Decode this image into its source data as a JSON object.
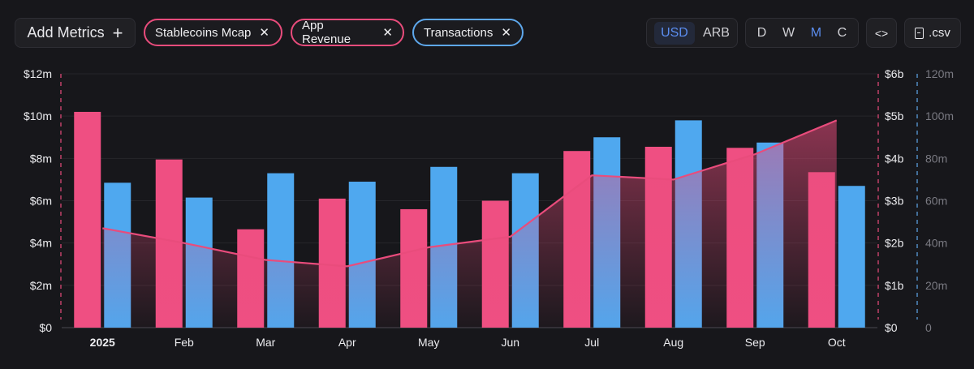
{
  "toolbar": {
    "add_metrics_label": "Add Metrics",
    "add_icon": "+",
    "metrics": [
      {
        "label": "Stablecoins Mcap",
        "color": "#e94c7c"
      },
      {
        "label": "App Revenue",
        "color": "#e94c7c"
      },
      {
        "label": "Transactions",
        "color": "#5ea8ec"
      }
    ],
    "close_icon": "✕",
    "currency": {
      "options": [
        "USD",
        "ARB"
      ],
      "selected": "USD"
    },
    "period": {
      "options": [
        "D",
        "W",
        "M",
        "C"
      ],
      "selected": "M"
    },
    "embed_label": "<>",
    "csv_label": ".csv"
  },
  "chart_data": {
    "type": "bar",
    "categories": [
      "2025",
      "Feb",
      "Mar",
      "Apr",
      "May",
      "Jun",
      "Jul",
      "Aug",
      "Sep",
      "Oct"
    ],
    "series": [
      {
        "name": "App Revenue",
        "type": "bar",
        "axis": "left",
        "color": "#ef4f82",
        "values": [
          10.2,
          7.95,
          4.65,
          6.1,
          5.6,
          6.0,
          8.35,
          8.55,
          8.5,
          7.35
        ]
      },
      {
        "name": "Transactions",
        "type": "bar",
        "axis": "right-2",
        "color": "#4fa8ef",
        "values": [
          68.5,
          61.5,
          73.0,
          69.0,
          76.0,
          73.0,
          90.0,
          98.0,
          87.5,
          67.0
        ]
      },
      {
        "name": "Stablecoins Mcap",
        "type": "area",
        "axis": "right-1",
        "color": "#e94c7c",
        "values": [
          2.35,
          2.0,
          1.6,
          1.45,
          1.9,
          2.15,
          3.6,
          3.5,
          4.1,
          4.9
        ]
      }
    ],
    "axes": {
      "left": {
        "ticks": [
          "$0",
          "$2m",
          "$4m",
          "$6m",
          "$8m",
          "$10m",
          "$12m"
        ],
        "range": [
          0,
          12
        ],
        "unit": "m USD"
      },
      "right_1": {
        "ticks": [
          "$0",
          "$1b",
          "$2b",
          "$3b",
          "$4b",
          "$5b",
          "$6b"
        ],
        "range": [
          0,
          6
        ],
        "unit": "b USD"
      },
      "right_2": {
        "ticks": [
          "0",
          "20m",
          "40m",
          "60m",
          "80m",
          "100m",
          "120m"
        ],
        "range": [
          0,
          120
        ],
        "unit": "m"
      }
    },
    "grid": true
  }
}
